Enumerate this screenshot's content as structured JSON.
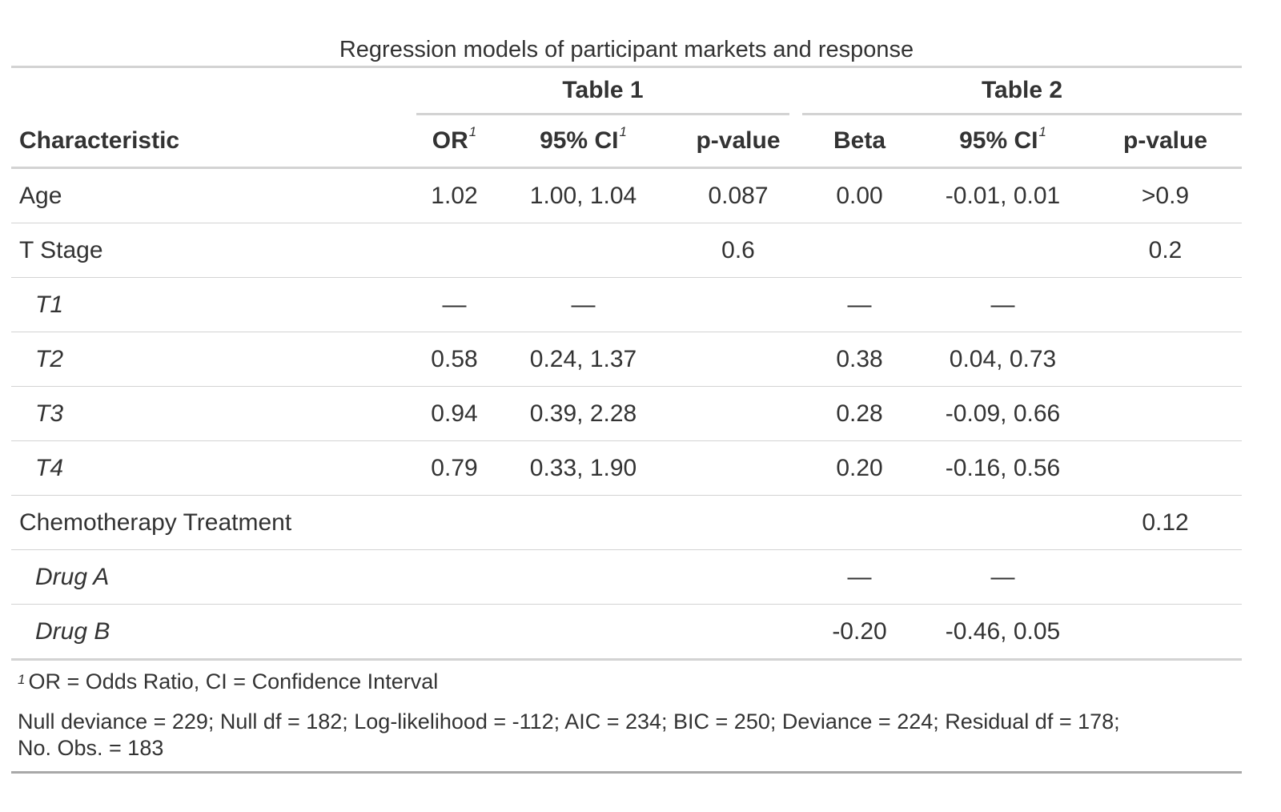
{
  "title": "Regression models of participant markets and response",
  "spanners": [
    "Table 1",
    "Table 2"
  ],
  "columns": {
    "characteristic": "Characteristic",
    "or": "OR",
    "ci1": "95% CI",
    "p1": "p-value",
    "beta": "Beta",
    "ci2": "95% CI",
    "p2": "p-value",
    "footnote_mark": "1"
  },
  "rows": [
    {
      "label": "Age",
      "or": "1.02",
      "ci1": "1.00, 1.04",
      "p1": "0.087",
      "beta": "0.00",
      "ci2": "-0.01, 0.01",
      "p2": ">0.9"
    },
    {
      "label": "T Stage",
      "or": "",
      "ci1": "",
      "p1": "0.6",
      "beta": "",
      "ci2": "",
      "p2": "0.2"
    },
    {
      "label": "T1",
      "or": "—",
      "ci1": "—",
      "p1": "",
      "beta": "—",
      "ci2": "—",
      "p2": ""
    },
    {
      "label": "T2",
      "or": "0.58",
      "ci1": "0.24, 1.37",
      "p1": "",
      "beta": "0.38",
      "ci2": "0.04, 0.73",
      "p2": ""
    },
    {
      "label": "T3",
      "or": "0.94",
      "ci1": "0.39, 2.28",
      "p1": "",
      "beta": "0.28",
      "ci2": "-0.09, 0.66",
      "p2": ""
    },
    {
      "label": "T4",
      "or": "0.79",
      "ci1": "0.33, 1.90",
      "p1": "",
      "beta": "0.20",
      "ci2": "-0.16, 0.56",
      "p2": ""
    },
    {
      "label": "Chemotherapy Treatment",
      "or": "",
      "ci1": "",
      "p1": "",
      "beta": "",
      "ci2": "",
      "p2": "0.12"
    },
    {
      "label": "Drug A",
      "or": "",
      "ci1": "",
      "p1": "",
      "beta": "—",
      "ci2": "—",
      "p2": ""
    },
    {
      "label": "Drug B",
      "or": "",
      "ci1": "",
      "p1": "",
      "beta": "-0.20",
      "ci2": "-0.46, 0.05",
      "p2": ""
    }
  ],
  "footnotes": {
    "mark": "1",
    "abbreviations": "OR = Odds Ratio, CI = Confidence Interval",
    "model_stats_line1": "Null deviance = 229; Null df = 182; Log-likelihood = -112; AIC = 234; BIC = 250; Deviance = 224; Residual df = 178;",
    "model_stats_line2": "No. Obs. = 183"
  }
}
